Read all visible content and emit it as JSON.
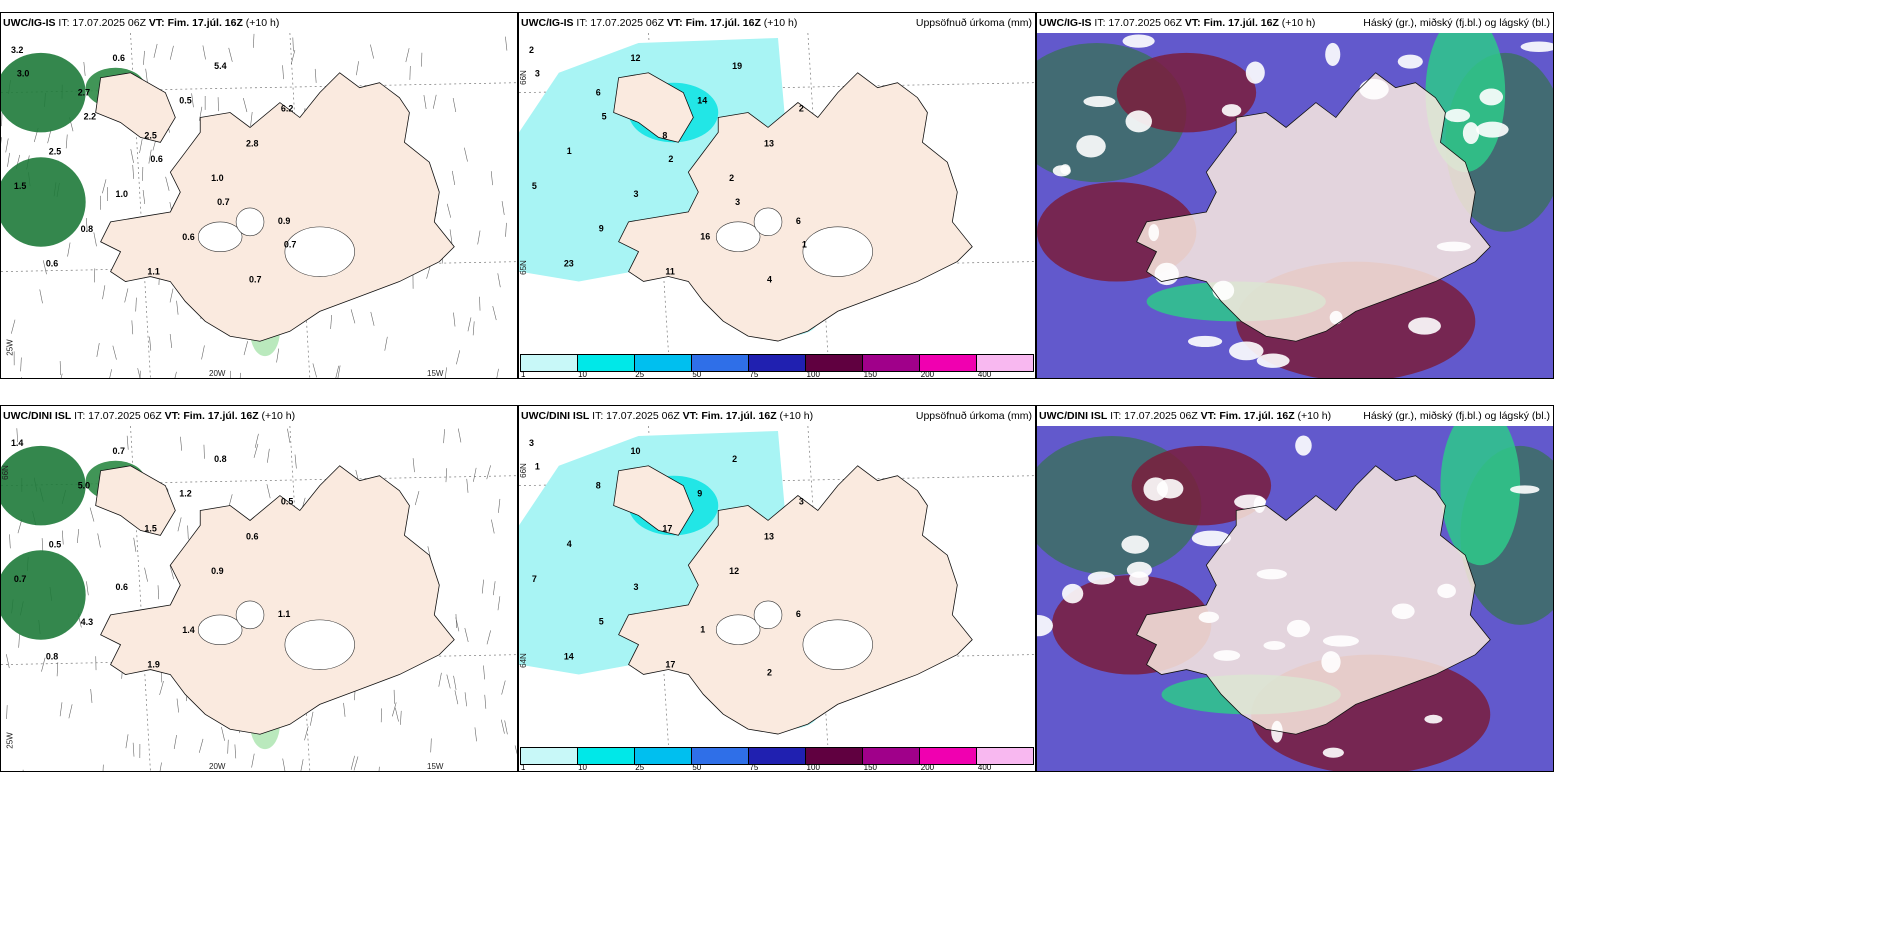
{
  "rows": [
    {
      "model": "UWC/IG-IS",
      "panels": [
        {
          "model": "UWC/IG-IS",
          "it": "IT: 17.07.2025 06Z",
          "vt_label": "VT:",
          "vt": "Fim. 17.júl. 16Z",
          "lead": "(+10 h)",
          "title": ""
        },
        {
          "model": "UWC/IG-IS",
          "it": "IT: 17.07.2025 06Z",
          "vt_label": "VT:",
          "vt": "Fim. 17.júl. 16Z",
          "lead": "(+10 h)",
          "title": "Uppsöfnuð úrkoma (mm)"
        },
        {
          "model": "UWC/IG-IS",
          "it": "IT: 17.07.2025 06Z",
          "vt_label": "VT:",
          "vt": "Fim. 17.júl. 16Z",
          "lead": "(+10 h)",
          "title": "Háský (gr.), miðský (fj.bl.) og lágský (bl.)"
        }
      ],
      "axis": {
        "lon_a": "20W",
        "lon_b": "15W",
        "lat_a": "25W",
        "lat_b": "66N",
        "lat_c": "65N"
      }
    },
    {
      "model": "UWC/DINI ISL",
      "panels": [
        {
          "model": "UWC/DINI ISL",
          "it": "IT: 17.07.2025 06Z",
          "vt_label": "VT:",
          "vt": "Fim. 17.júl. 16Z",
          "lead": "(+10 h)",
          "title": ""
        },
        {
          "model": "UWC/DINI ISL",
          "it": "IT: 17.07.2025 06Z",
          "vt_label": "VT:",
          "vt": "Fim. 17.júl. 16Z",
          "lead": "(+10 h)",
          "title": "Uppsöfnuð úrkoma (mm)"
        },
        {
          "model": "UWC/DINI ISL",
          "it": "IT: 17.07.2025 06Z",
          "vt_label": "VT:",
          "vt": "Fim. 17.júl. 16Z",
          "lead": "(+10 h)",
          "title": "Háský (gr.), miðský (fj.bl.) og lágský (bl.)"
        }
      ],
      "axis": {
        "lon_a": "20W",
        "lon_b": "15W",
        "lat_a": "25W",
        "lat_b": "66N",
        "lat_c": "64N"
      }
    }
  ],
  "legend": {
    "ticks": [
      "1",
      "10",
      "25",
      "50",
      "75",
      "100",
      "150",
      "200",
      "400"
    ],
    "colors": [
      "#c8f8f8",
      "#00e8e8",
      "#00bfef",
      "#2f6fe8",
      "#2020b0",
      "#600040",
      "#a0008a",
      "#f000b0",
      "#f8b8f0"
    ]
  },
  "values": {
    "r0p0": [
      "3.2",
      "2.7",
      "2.5",
      "1.0",
      "0.9",
      "0.6",
      "0.6",
      "0.5",
      "2.8",
      "1.5",
      "0.8",
      "1.1",
      "5.4",
      "6.2",
      "2.5",
      "1.0",
      "0.6",
      "0.7",
      "3.0",
      "2.2",
      "0.6",
      "0.7",
      "0.7"
    ],
    "r0p1": [
      "2",
      "6",
      "8",
      "2",
      "6",
      "23",
      "12",
      "14",
      "13",
      "5",
      "9",
      "11",
      "19",
      "2",
      "1",
      "3",
      "16",
      "4",
      "3",
      "5",
      "2",
      "3",
      "1"
    ],
    "r1p0": [
      "1.4",
      "5.0",
      "1.5",
      "0.9",
      "1.1",
      "0.8",
      "0.7",
      "1.2",
      "0.6",
      "0.7",
      "4.3",
      "1.9",
      "0.8",
      "0.5",
      "0.5",
      "0.6",
      "1.4"
    ],
    "r1p1": [
      "3",
      "8",
      "17",
      "12",
      "6",
      "14",
      "10",
      "9",
      "13",
      "7",
      "5",
      "17",
      "2",
      "3",
      "4",
      "3",
      "1",
      "2",
      "1"
    ]
  },
  "colors": {
    "land": "#faeadf",
    "precip_light": "#a8f4f4",
    "precip_mid": "#22e6e6",
    "cloud_high": "#3d6e63",
    "cloud_mid": "#6259cc",
    "cloud_low": "#7a1d3c",
    "green_low": "#2ec98a"
  }
}
